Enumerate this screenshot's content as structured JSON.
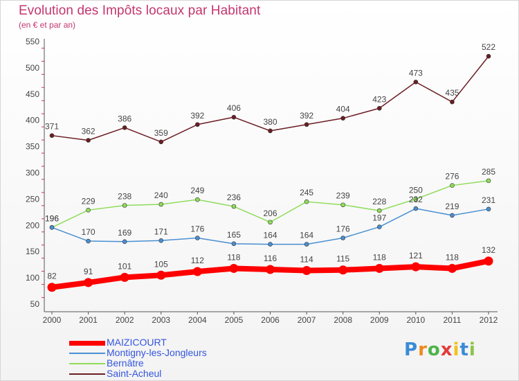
{
  "header": {
    "title": "Evolution des Impôts locaux par Habitant",
    "subtitle": "(en € et par an)"
  },
  "logo": {
    "letters": [
      "P",
      "r",
      "o",
      "x",
      "i",
      "t",
      "i"
    ],
    "colors": [
      "#3a8bd6",
      "#f08a1c",
      "#4db34a",
      "#e23b3b",
      "#f2c21b",
      "#3a8bd6",
      "#8bc34a"
    ]
  },
  "chart_data": {
    "type": "line",
    "x": [
      "2000",
      "2001",
      "2002",
      "2003",
      "2004",
      "2005",
      "2006",
      "2007",
      "2008",
      "2009",
      "2010",
      "2011",
      "2012"
    ],
    "ylim": [
      50,
      550
    ],
    "yticks": [
      50,
      100,
      150,
      200,
      250,
      300,
      350,
      400,
      450,
      500,
      550
    ],
    "grid": false,
    "legend": "bottom-left",
    "series": [
      {
        "name": "Saint-Acheul",
        "color": "#6b1d22",
        "values": [
          371,
          362,
          386,
          359,
          392,
          406,
          380,
          392,
          404,
          423,
          473,
          435,
          522
        ]
      },
      {
        "name": "Bernâtre",
        "color": "#8fdc5a",
        "values": [
          196,
          229,
          238,
          240,
          249,
          236,
          206,
          245,
          239,
          228,
          250,
          276,
          285
        ]
      },
      {
        "name": "Montigny-les-Jongleurs",
        "color": "#4a8fd2",
        "values": [
          196,
          170,
          169,
          171,
          176,
          165,
          164,
          164,
          176,
          197,
          232,
          219,
          231
        ]
      },
      {
        "name": "MAIZICOURT",
        "color": "#ff0000",
        "values": [
          82,
          91,
          101,
          105,
          112,
          118,
          116,
          114,
          115,
          118,
          121,
          118,
          132
        ]
      }
    ],
    "legend_order": [
      "MAIZICOURT",
      "Montigny-les-Jongleurs",
      "Bernâtre",
      "Saint-Acheul"
    ]
  }
}
